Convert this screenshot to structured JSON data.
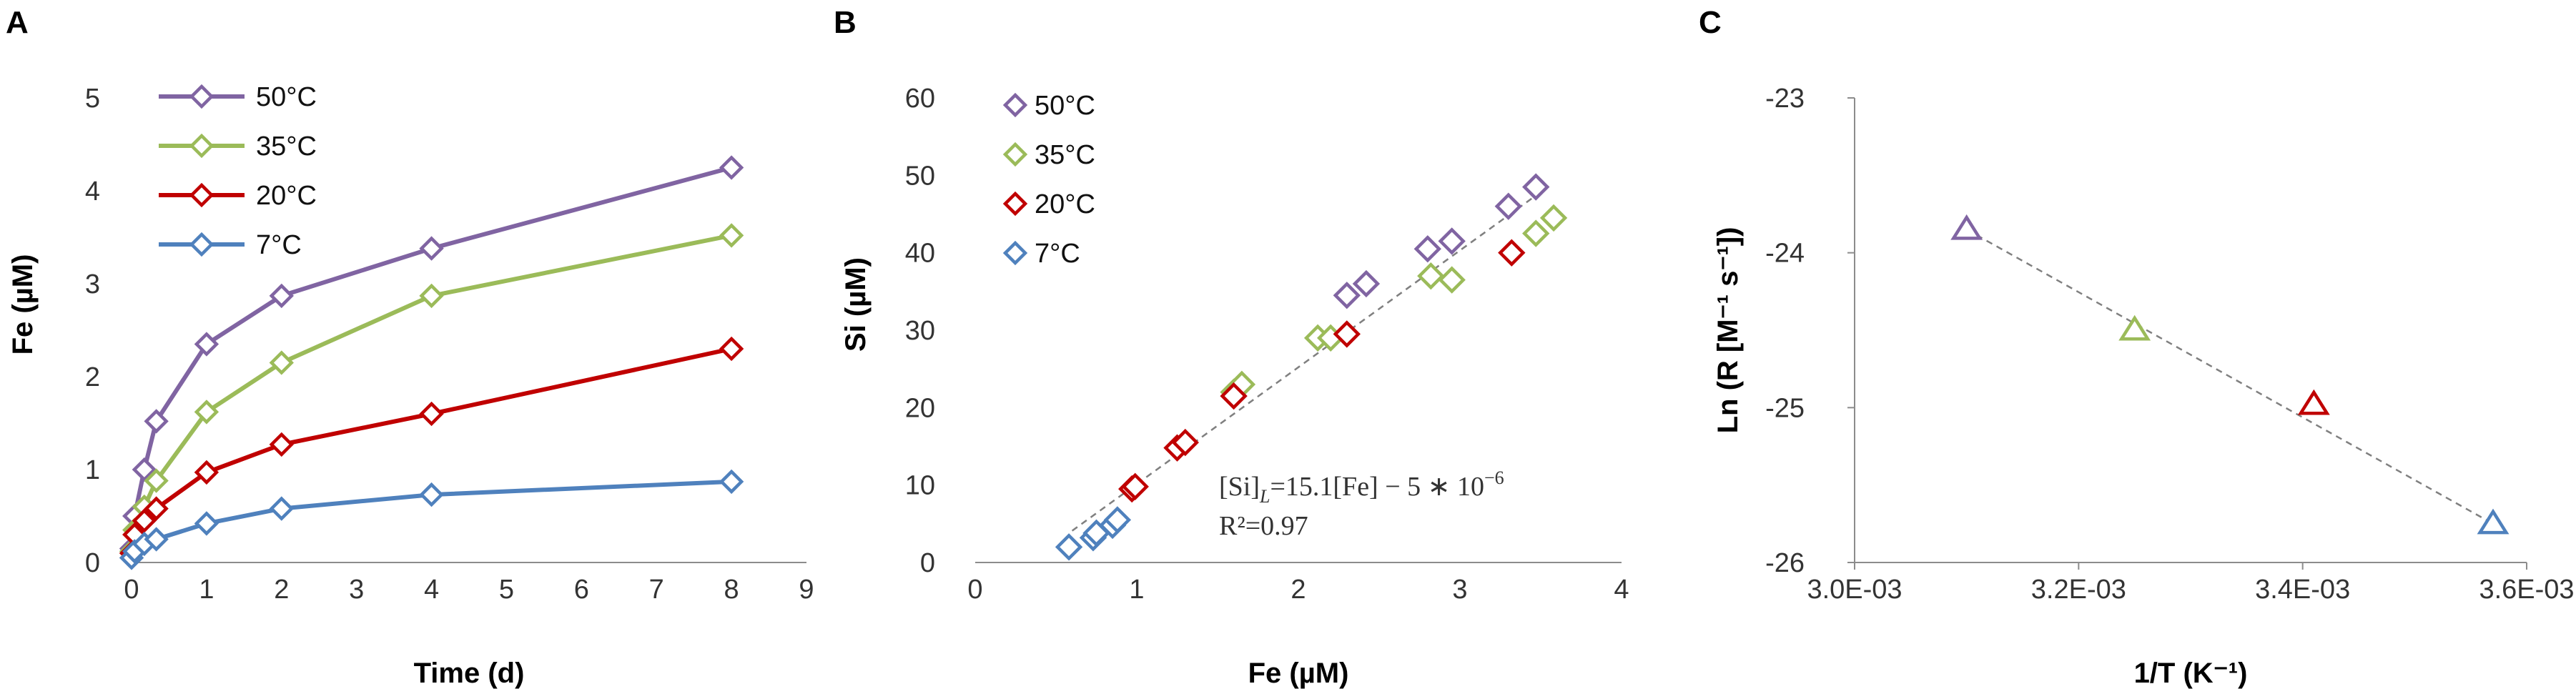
{
  "colors": {
    "50C": "#8064a2",
    "35C": "#9bbb59",
    "20C": "#c00000",
    "7C": "#4f81bd",
    "fit": "#808080"
  },
  "chart_data": [
    {
      "panel": "A",
      "type": "line",
      "xlabel": "Time (d)",
      "ylabel": "Fe (µM)",
      "xlim": [
        0,
        9
      ],
      "ylim": [
        0,
        5
      ],
      "xticks": [
        "0",
        "1",
        "2",
        "3",
        "4",
        "5",
        "6",
        "7",
        "8",
        "9"
      ],
      "yticks": [
        "0",
        "1",
        "2",
        "3",
        "4",
        "5"
      ],
      "marker": "diamond",
      "legend_position": "top-left",
      "series": [
        {
          "name": "50°C",
          "color": "#8064a2",
          "x": [
            0,
            0.04,
            0.17,
            0.33,
            1,
            2,
            4,
            8
          ],
          "y": [
            0.15,
            0.5,
            1.0,
            1.52,
            2.35,
            2.87,
            3.38,
            4.25
          ]
        },
        {
          "name": "35°C",
          "color": "#9bbb59",
          "x": [
            0,
            0.04,
            0.17,
            0.33,
            1,
            2,
            4,
            8
          ],
          "y": [
            0.12,
            0.35,
            0.6,
            0.88,
            1.62,
            2.15,
            2.87,
            3.52
          ]
        },
        {
          "name": "20°C",
          "color": "#c00000",
          "x": [
            0,
            0.04,
            0.17,
            0.33,
            1,
            2,
            4,
            8
          ],
          "y": [
            0.1,
            0.3,
            0.45,
            0.58,
            0.97,
            1.27,
            1.6,
            2.3
          ]
        },
        {
          "name": "7°C",
          "color": "#4f81bd",
          "x": [
            0,
            0.04,
            0.17,
            0.33,
            1,
            2,
            4,
            8
          ],
          "y": [
            0.05,
            0.12,
            0.2,
            0.25,
            0.42,
            0.58,
            0.73,
            0.87
          ]
        }
      ]
    },
    {
      "panel": "B",
      "type": "scatter",
      "xlabel": "Fe (µM)",
      "ylabel": "Si (µM)",
      "xlim": [
        0,
        4
      ],
      "ylim": [
        0,
        60
      ],
      "xticks": [
        "0",
        "1",
        "2",
        "3",
        "4"
      ],
      "yticks": [
        "0",
        "10",
        "20",
        "30",
        "40",
        "50",
        "60"
      ],
      "marker": "diamond",
      "legend_position": "top-left",
      "annotation_line1": "[Si]",
      "annotation_sub": "L",
      "annotation_rest": "=15.1[Fe] − 5 ∗ 10",
      "annotation_sup": "−6",
      "annotation_line2": "R²=0.97",
      "trendline": {
        "x": [
          0.6,
          3.55
        ],
        "y": [
          4.1,
          48.6
        ]
      },
      "series": [
        {
          "name": "50°C",
          "color": "#8064a2",
          "x": [
            2.3,
            2.42,
            2.8,
            2.95,
            3.3,
            3.47
          ],
          "y": [
            34.5,
            36,
            40.5,
            41.5,
            46,
            48.5
          ]
        },
        {
          "name": "35°C",
          "color": "#9bbb59",
          "x": [
            1.6,
            1.65,
            2.12,
            2.2,
            2.82,
            2.95,
            3.47,
            3.58
          ],
          "y": [
            22,
            23,
            29,
            29,
            37,
            36.5,
            42.5,
            44.5
          ]
        },
        {
          "name": "20°C",
          "color": "#c00000",
          "x": [
            0.97,
            0.99,
            1.25,
            1.3,
            1.6,
            2.3,
            3.32
          ],
          "y": [
            9.5,
            9.8,
            14.8,
            15.5,
            21.5,
            29.5,
            40
          ]
        },
        {
          "name": "7°C",
          "color": "#4f81bd",
          "x": [
            0.58,
            0.73,
            0.75,
            0.85,
            0.88
          ],
          "y": [
            2,
            3.2,
            3.8,
            4.8,
            5.5
          ]
        }
      ]
    },
    {
      "panel": "C",
      "type": "scatter",
      "xlabel": "1/T (K⁻¹)",
      "ylabel": "Ln (R [M⁻¹ s⁻¹])",
      "xlim": [
        0.003,
        0.0036
      ],
      "ylim": [
        -26,
        -23
      ],
      "xticks": [
        "3.0E-03",
        "3.2E-03",
        "3.4E-03",
        "3.6E-03"
      ],
      "yticks": [
        "-26",
        "-25",
        "-24",
        "-23"
      ],
      "marker": "triangle",
      "trendline": {
        "x": [
          0.0031,
          0.00357
        ],
        "y": [
          -23.85,
          -25.75
        ]
      },
      "series": [
        {
          "color": "#8064a2",
          "x": [
            0.0031
          ],
          "y": [
            -23.85
          ]
        },
        {
          "color": "#9bbb59",
          "x": [
            0.00325
          ],
          "y": [
            -24.5
          ]
        },
        {
          "color": "#c00000",
          "x": [
            0.00341
          ],
          "y": [
            -24.98
          ]
        },
        {
          "color": "#4f81bd",
          "x": [
            0.00357
          ],
          "y": [
            -25.75
          ]
        }
      ]
    }
  ]
}
